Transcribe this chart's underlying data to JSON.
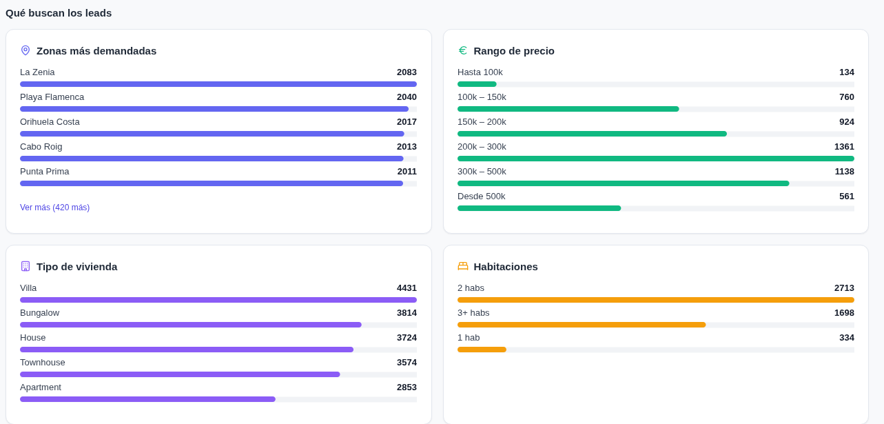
{
  "chart_data": [
    {
      "type": "bar",
      "orientation": "horizontal",
      "title": "Zonas más demandadas",
      "categories": [
        "La Zenia",
        "Playa Flamenca",
        "Orihuela Costa",
        "Cabo Roig",
        "Punta Prima"
      ],
      "values": [
        2083,
        2040,
        2017,
        2013,
        2011
      ],
      "color": "#6366f1",
      "xlim": [
        0,
        2083
      ],
      "data_labels": true,
      "grid": "y",
      "annotations": [
        "Qué buscan los leads",
        "Ver más (420 más)"
      ]
    },
    {
      "type": "bar",
      "orientation": "horizontal",
      "title": "Rango de precio",
      "categories": [
        "Hasta 100k",
        "100k – 150k",
        "150k – 200k",
        "200k – 300k",
        "300k – 500k",
        "Desde 500k"
      ],
      "values": [
        134,
        760,
        924,
        1361,
        1138,
        561
      ],
      "color": "#10b981",
      "xlim": [
        0,
        1361
      ],
      "data_labels": true,
      "grid": "y"
    },
    {
      "type": "bar",
      "orientation": "horizontal",
      "title": "Tipo de vivienda",
      "categories": [
        "Villa",
        "Bungalow",
        "House",
        "Townhouse",
        "Apartment"
      ],
      "values": [
        4431,
        3814,
        3724,
        3574,
        2853
      ],
      "color": "#8b5cf6",
      "xlim": [
        0,
        4431
      ],
      "data_labels": true,
      "grid": "y"
    },
    {
      "type": "bar",
      "orientation": "horizontal",
      "title": "Habitaciones",
      "categories": [
        "2 habs",
        "3+ habs",
        "1 hab"
      ],
      "values": [
        2713,
        1698,
        334
      ],
      "color": "#f59e0b",
      "xlim": [
        0,
        2713
      ],
      "data_labels": true,
      "grid": "y"
    }
  ]
}
